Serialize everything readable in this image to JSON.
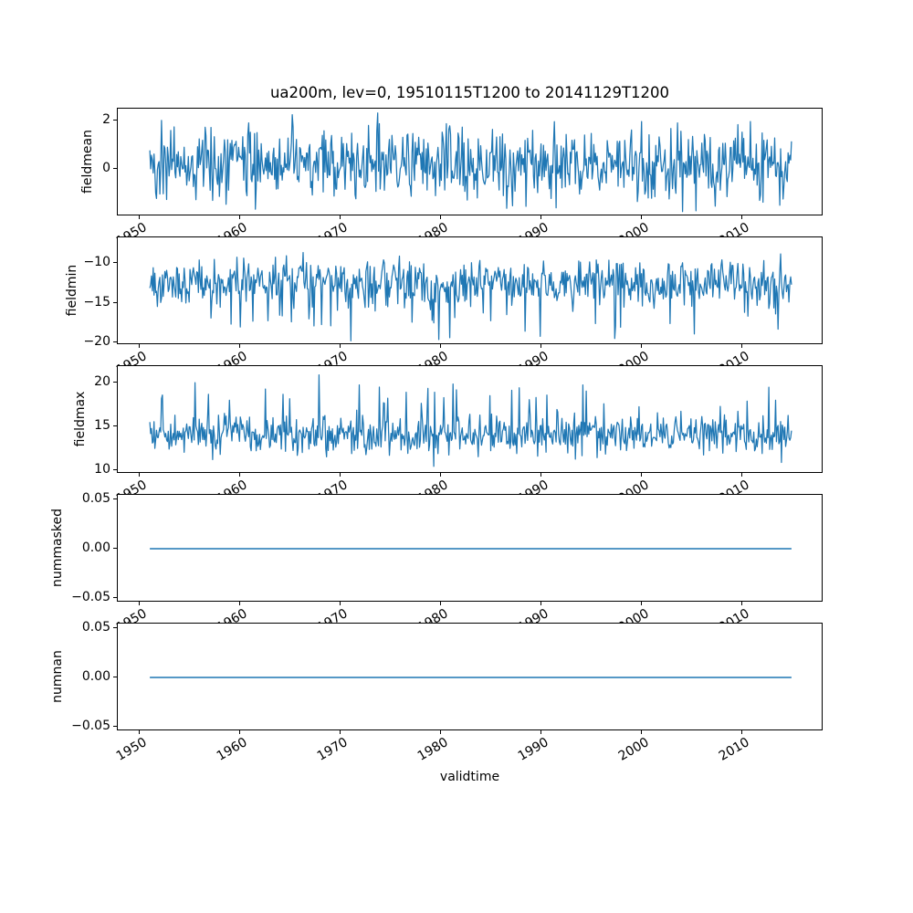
{
  "figure": {
    "title": "ua200m, lev=0, 19510115T1200 to 20141129T1200",
    "xlabel": "validtime",
    "variable": "ua200m",
    "level": "lev=0",
    "time_start": "19510115T1200",
    "time_end": "20141129T1200",
    "background": "#ffffff",
    "line_color": "#1f77b4",
    "axis_color": "#000000",
    "xlim": [
      1947.85,
      2018.1
    ],
    "x_ticks": [
      {
        "label": "1950",
        "year": 1950
      },
      {
        "label": "1960",
        "year": 1960
      },
      {
        "label": "1970",
        "year": 1970
      },
      {
        "label": "1980",
        "year": 1980
      },
      {
        "label": "1990",
        "year": 1990
      },
      {
        "label": "2000",
        "year": 2000
      },
      {
        "label": "2010",
        "year": 2010
      }
    ]
  },
  "chart_data": [
    {
      "type": "line",
      "ylabel": "fieldmean",
      "ylim": [
        -1.98,
        2.49
      ],
      "yticks": [
        {
          "label": "2",
          "value": 2
        },
        {
          "label": "0",
          "value": 0
        }
      ],
      "series": [
        {
          "name": "fieldmean",
          "n_points": 767,
          "x_start": 1951.04,
          "x_end": 2014.91,
          "summary": {
            "approx_mean": 0.2,
            "approx_min": -1.8,
            "approx_max": 2.3
          },
          "gen": {
            "seed": 42,
            "base": 0.18,
            "std": 0.72,
            "spike_p": 0,
            "spike_dir": 1,
            "spike_min": 0,
            "spike_max": 0,
            "clamp": [
              -1.78,
              2.28
            ],
            "anchors": [
              [
                1952.2,
                2.0
              ],
              [
                1960.9,
                1.9
              ],
              [
                1973.7,
                2.31
              ],
              [
                1991.3,
                1.95
              ],
              [
                2005.4,
                -1.75
              ]
            ]
          }
        }
      ]
    },
    {
      "type": "line",
      "ylabel": "fieldmin",
      "ylim": [
        -20.3,
        -6.8
      ],
      "yticks": [
        {
          "label": "−10",
          "value": -10
        },
        {
          "label": "−15",
          "value": -15
        },
        {
          "label": "−20",
          "value": -20
        }
      ],
      "series": [
        {
          "name": "fieldmin",
          "n_points": 767,
          "x_start": 1951.04,
          "x_end": 2014.91,
          "summary": {
            "approx_mean": -12.3,
            "approx_min": -19.7,
            "approx_max": -7.6
          },
          "gen": {
            "seed": 1337,
            "base": -12.3,
            "std": 1.35,
            "spike_p": 0.06,
            "spike_dir": -1,
            "spike_min": 1.5,
            "spike_max": 5.5,
            "clamp": [
              -19.75,
              -7.6
            ],
            "anchors": [
              [
                1957.1,
                -16.9
              ],
              [
                1961.3,
                -17.3
              ],
              [
                1967.4,
                -17.9
              ],
              [
                1979.8,
                -19.6
              ],
              [
                1989.9,
                -19.2
              ],
              [
                1995.4,
                -17.6
              ],
              [
                2005.2,
                -18.9
              ],
              [
                2013.6,
                -18.3
              ]
            ]
          }
        }
      ]
    },
    {
      "type": "line",
      "ylabel": "fieldmax",
      "ylim": [
        9.6,
        21.9
      ],
      "yticks": [
        {
          "label": "20",
          "value": 20
        },
        {
          "label": "15",
          "value": 15
        },
        {
          "label": "10",
          "value": 10
        }
      ],
      "series": [
        {
          "name": "fieldmax",
          "n_points": 767,
          "x_start": 1951.04,
          "x_end": 2014.91,
          "summary": {
            "approx_mean": 14.1,
            "approx_min": 10.4,
            "approx_max": 21.0
          },
          "gen": {
            "seed": 2024,
            "base": 14.1,
            "std": 1.05,
            "spike_p": 0.05,
            "spike_dir": 1,
            "spike_min": 1.2,
            "spike_max": 5.2,
            "clamp": [
              10.4,
              20.95
            ],
            "anchors": [
              [
                1952.3,
                18.6
              ],
              [
                1959.0,
                18.0
              ],
              [
                1967.9,
                20.9
              ],
              [
                1973.9,
                19.5
              ],
              [
                1979.3,
                10.45
              ],
              [
                1980.3,
                18.3
              ],
              [
                1990.6,
                18.6
              ],
              [
                1996.2,
                17.6
              ],
              [
                2010.5,
                17.9
              ],
              [
                2013.9,
                10.9
              ]
            ]
          }
        }
      ]
    },
    {
      "type": "line",
      "ylabel": "nummasked",
      "ylim": [
        -0.0546,
        0.0546
      ],
      "yticks": [
        {
          "label": "0.05",
          "value": 0.05
        },
        {
          "label": "0.00",
          "value": 0
        },
        {
          "label": "−0.05",
          "value": -0.05
        }
      ],
      "series": [
        {
          "name": "nummasked",
          "x_start": 1951.04,
          "x_end": 2014.91,
          "constant_value": 0
        }
      ]
    },
    {
      "type": "line",
      "ylabel": "numnan",
      "ylim": [
        -0.0546,
        0.0546
      ],
      "yticks": [
        {
          "label": "0.05",
          "value": 0.05
        },
        {
          "label": "0.00",
          "value": 0
        },
        {
          "label": "−0.05",
          "value": -0.05
        }
      ],
      "series": [
        {
          "name": "numnan",
          "x_start": 1951.04,
          "x_end": 2014.91,
          "constant_value": 0
        }
      ]
    }
  ],
  "layout_hints": {
    "n_subplots": 5,
    "shared_x": true,
    "grid": false,
    "legend": "none",
    "x_tick_rotation_deg": 30
  }
}
